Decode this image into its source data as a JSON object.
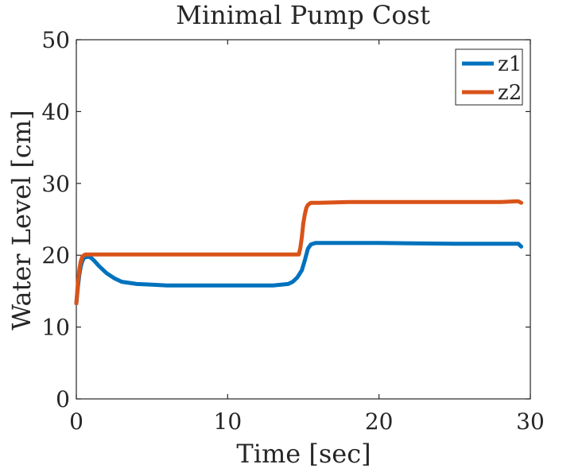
{
  "chart_data": {
    "type": "line",
    "title": "Minimal Pump Cost",
    "xlabel": "Time [sec]",
    "ylabel": "Water Level [cm]",
    "xlim": [
      0,
      30
    ],
    "ylim": [
      0,
      50
    ],
    "xticks": [
      0,
      10,
      20,
      30
    ],
    "yticks": [
      0,
      10,
      20,
      30,
      40,
      50
    ],
    "grid": false,
    "legend_position": "top-right",
    "series": [
      {
        "name": "z1",
        "color": "#0072BD",
        "x": [
          0,
          0.1,
          0.2,
          0.3,
          0.4,
          0.5,
          0.6,
          0.8,
          1.0,
          1.2,
          1.5,
          2.0,
          2.5,
          3.0,
          4.0,
          5.0,
          6.0,
          8.0,
          10.0,
          12.0,
          13.0,
          14.0,
          14.3,
          14.6,
          14.9,
          15.1,
          15.3,
          15.5,
          15.8,
          16.0,
          17.0,
          20.0,
          25.0,
          28.0,
          29.0,
          29.2,
          29.4
        ],
        "y": [
          13.3,
          15.5,
          17.3,
          18.5,
          19.2,
          19.6,
          19.7,
          19.8,
          19.6,
          19.2,
          18.5,
          17.5,
          16.8,
          16.3,
          16.0,
          15.9,
          15.8,
          15.8,
          15.8,
          15.8,
          15.8,
          16.0,
          16.3,
          16.9,
          17.9,
          19.3,
          20.9,
          21.5,
          21.7,
          21.7,
          21.7,
          21.7,
          21.6,
          21.6,
          21.6,
          21.6,
          21.2
        ]
      },
      {
        "name": "z2",
        "color": "#D95319",
        "x": [
          0,
          0.1,
          0.2,
          0.3,
          0.4,
          0.5,
          0.6,
          0.8,
          1.0,
          5.0,
          10.0,
          14.0,
          14.7,
          14.8,
          14.9,
          15.0,
          15.1,
          15.2,
          15.3,
          15.5,
          15.7,
          16.0,
          18.0,
          20.0,
          25.0,
          28.0,
          29.0,
          29.2,
          29.4
        ],
        "y": [
          13.3,
          16.0,
          18.0,
          19.2,
          19.8,
          20.0,
          20.1,
          20.1,
          20.1,
          20.1,
          20.1,
          20.1,
          20.1,
          21.0,
          22.5,
          24.5,
          25.7,
          26.6,
          27.0,
          27.3,
          27.3,
          27.3,
          27.4,
          27.4,
          27.4,
          27.4,
          27.5,
          27.5,
          27.3
        ]
      }
    ]
  }
}
